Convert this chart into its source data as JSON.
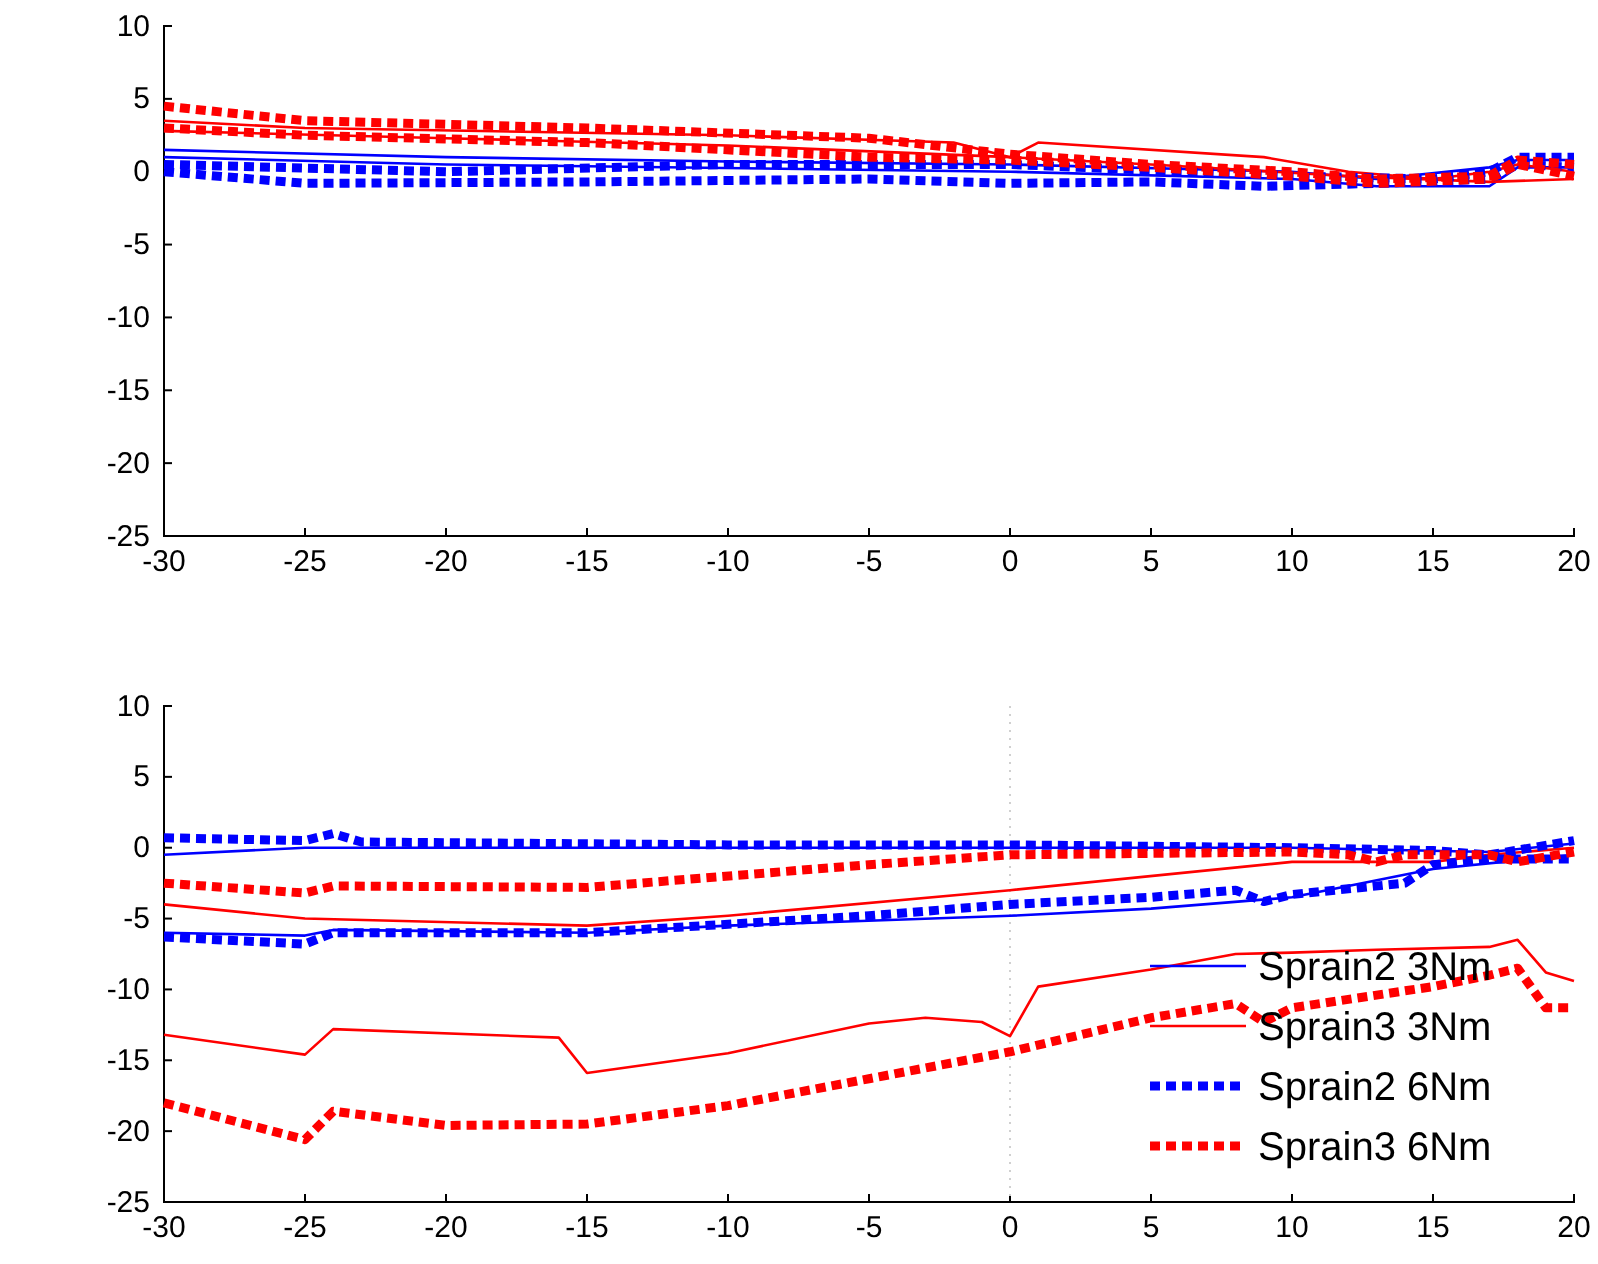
{
  "chart_data": [
    {
      "type": "line",
      "xlim": [
        -30,
        20
      ],
      "xticks": [
        -30,
        -25,
        -20,
        -15,
        -10,
        -5,
        0,
        5,
        10,
        15,
        20
      ],
      "ylim": [
        -25,
        10
      ],
      "yticks": [
        -25,
        -20,
        -15,
        -10,
        -5,
        0,
        5,
        10
      ],
      "grid": false,
      "legend": false,
      "series": [
        {
          "color": "#0000ff",
          "line_style": "solid",
          "x": [
            -30,
            -20,
            -10,
            0,
            10,
            13,
            17,
            18,
            20
          ],
          "values": [
            1.5,
            1,
            0.7,
            0.5,
            0,
            -0.5,
            0.3,
            0.8,
            0.8
          ]
        },
        {
          "color": "#0000ff",
          "line_style": "solid",
          "x": [
            -30,
            -20,
            0,
            10,
            13,
            17,
            18,
            20
          ],
          "values": [
            1,
            0.5,
            0,
            -0.5,
            -1,
            -1,
            0.3,
            0.3
          ]
        },
        {
          "color": "#ff0000",
          "line_style": "solid",
          "x": [
            -30,
            -25,
            -10,
            -2,
            0,
            1,
            9,
            12,
            15,
            17,
            18,
            20
          ],
          "values": [
            3.5,
            3,
            2.5,
            2,
            1,
            2,
            1,
            0,
            -0.5,
            0,
            0.5,
            0
          ]
        },
        {
          "color": "#ff0000",
          "line_style": "solid",
          "x": [
            -30,
            -20,
            -10,
            0,
            5,
            12,
            17,
            20
          ],
          "values": [
            2.8,
            2.3,
            1.8,
            1,
            0.5,
            -0.3,
            -0.7,
            -0.5
          ]
        },
        {
          "color": "#0000ff",
          "line_style": "dashed",
          "x": [
            -30,
            -20,
            -10,
            0,
            10,
            15,
            17,
            18,
            20
          ],
          "values": [
            0.5,
            0,
            0.5,
            0.5,
            -0.3,
            -0.5,
            0,
            1,
            1
          ]
        },
        {
          "color": "#0000ff",
          "line_style": "dashed",
          "x": [
            -30,
            -25,
            -15,
            -5,
            0,
            5,
            9,
            13,
            17,
            18,
            20
          ],
          "values": [
            0,
            -0.8,
            -0.7,
            -0.5,
            -0.8,
            -0.7,
            -1,
            -0.8,
            -0.5,
            0.5,
            0.3
          ]
        },
        {
          "color": "#ff0000",
          "line_style": "dashed",
          "x": [
            -30,
            -25,
            -15,
            -5,
            0,
            5,
            10,
            13,
            17,
            18,
            20
          ],
          "values": [
            4.5,
            3.5,
            3,
            2.3,
            1.2,
            0.5,
            0,
            -0.5,
            -0.3,
            0.8,
            0.5
          ]
        },
        {
          "color": "#ff0000",
          "line_style": "dashed",
          "x": [
            -30,
            -25,
            -15,
            -5,
            0,
            5,
            10,
            13,
            17,
            18,
            20
          ],
          "values": [
            3,
            2.5,
            2,
            1,
            0.8,
            0.3,
            -0.3,
            -0.8,
            -0.5,
            0.5,
            -0.3
          ]
        }
      ]
    },
    {
      "type": "line",
      "xlim": [
        -30,
        20
      ],
      "xticks": [
        -30,
        -25,
        -20,
        -15,
        -10,
        -5,
        0,
        5,
        10,
        15,
        20
      ],
      "ylim": [
        -25,
        10
      ],
      "yticks": [
        -25,
        -20,
        -15,
        -10,
        -5,
        0,
        5,
        10
      ],
      "grid": false,
      "legend": "bottom right",
      "ref_lines": [
        {
          "axis": "x",
          "value": 0,
          "color": "#d0d0d0",
          "line_style": "dotted"
        }
      ],
      "series": [
        {
          "name": "Sprain2 3Nm",
          "color": "#0000ff",
          "line_style": "solid",
          "x": [
            -30,
            -25,
            -10,
            0,
            10,
            17,
            20
          ],
          "values": [
            -0.5,
            0,
            0,
            0,
            0,
            -0.3,
            0.3
          ]
        },
        {
          "color": "#0000ff",
          "line_style": "solid",
          "x": [
            -30,
            -25,
            -24,
            -15,
            -10,
            0,
            5,
            10,
            15,
            20
          ],
          "values": [
            -6,
            -6.2,
            -5.8,
            -6,
            -5.5,
            -4.8,
            -4.3,
            -3.5,
            -1.5,
            -0.5
          ]
        },
        {
          "name": "Sprain3 3Nm",
          "color": "#ff0000",
          "line_style": "solid",
          "x": [
            -30,
            -25,
            -15,
            -10,
            0,
            10,
            15,
            17,
            20
          ],
          "values": [
            -4,
            -5,
            -5.5,
            -4.8,
            -3,
            -1,
            -1,
            -0.5,
            0
          ]
        },
        {
          "color": "#ff0000",
          "line_style": "solid",
          "x": [
            -30,
            -25,
            -24,
            -16,
            -15,
            -10,
            -5,
            -3,
            -1,
            0,
            1,
            5,
            8,
            10,
            13,
            17,
            18,
            19,
            20
          ],
          "values": [
            -13.2,
            -14.6,
            -12.8,
            -13.4,
            -15.9,
            -14.5,
            -12.4,
            -12,
            -12.3,
            -13.3,
            -9.8,
            -8.6,
            -7.5,
            -7.4,
            -7.2,
            -7,
            -6.5,
            -8.8,
            -9.4
          ]
        },
        {
          "name": "Sprain2 6Nm",
          "color": "#0000ff",
          "line_style": "dashed",
          "x": [
            -30,
            -25,
            -24,
            -23,
            -10,
            0,
            10,
            15,
            17,
            20
          ],
          "values": [
            0.7,
            0.5,
            1,
            0.4,
            0.2,
            0.2,
            0,
            -0.2,
            -0.5,
            0.5
          ]
        },
        {
          "color": "#0000ff",
          "line_style": "dashed",
          "x": [
            -30,
            -25,
            -24,
            -15,
            -5,
            0,
            5,
            8,
            9,
            10,
            14,
            15,
            17,
            20
          ],
          "values": [
            -6.3,
            -6.8,
            -6,
            -6,
            -4.8,
            -4,
            -3.5,
            -3,
            -3.8,
            -3.3,
            -2.5,
            -1.2,
            -0.8,
            -0.8
          ]
        },
        {
          "name": "Sprain3 6Nm",
          "color": "#ff0000",
          "line_style": "dashed",
          "x": [
            -30,
            -25,
            -24,
            -15,
            -5,
            0,
            10,
            12,
            13,
            14,
            17,
            18,
            20
          ],
          "values": [
            -2.5,
            -3.2,
            -2.7,
            -2.8,
            -1.2,
            -0.5,
            -0.3,
            -0.5,
            -1,
            -0.5,
            -0.5,
            -1,
            -0.3
          ]
        },
        {
          "color": "#ff0000",
          "line_style": "dashed",
          "x": [
            -30,
            -25,
            -24,
            -20,
            -15,
            -10,
            -5,
            0,
            5,
            8,
            9,
            10,
            15,
            17,
            18,
            19,
            20
          ],
          "values": [
            -18,
            -20.6,
            -18.6,
            -19.6,
            -19.5,
            -18.2,
            -16.3,
            -14.4,
            -12,
            -11,
            -12.3,
            -11.3,
            -9.8,
            -9,
            -8.5,
            -11.3,
            -11.3
          ]
        }
      ]
    }
  ]
}
